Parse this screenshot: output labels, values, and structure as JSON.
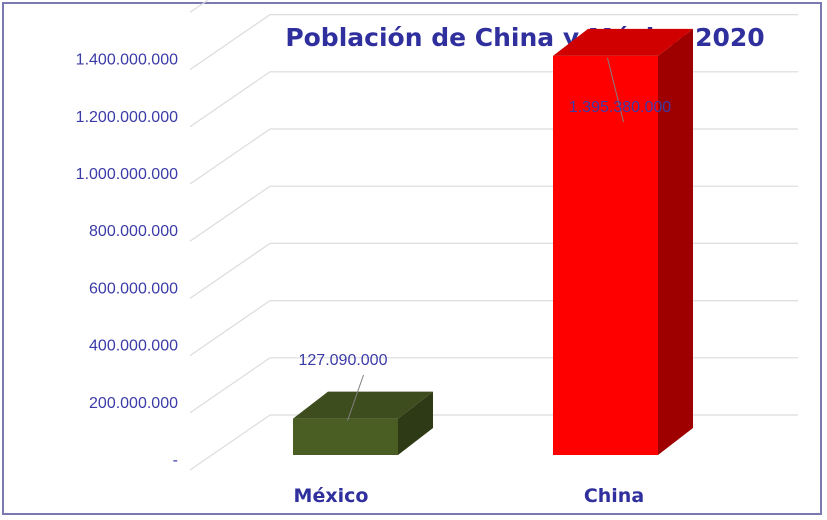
{
  "chart_data": {
    "type": "bar",
    "title": "Población de China y México 2020",
    "categories": [
      "México",
      "China"
    ],
    "values": [
      127090000,
      1395380000
    ],
    "data_labels": [
      "127.090.000",
      "1.395.380.000"
    ],
    "colors": [
      "#4a5e23",
      "#ff0000"
    ],
    "yticks": [
      0,
      200000000,
      400000000,
      600000000,
      800000000,
      1000000000,
      1200000000,
      1400000000
    ],
    "ytick_labels": [
      "-",
      "200.000.000",
      "400.000.000",
      "600.000.000",
      "800.000.000",
      "1.000.000.000",
      "1.200.000.000",
      "1.400.000.000"
    ],
    "ylim": [
      0,
      1600000000
    ],
    "grid": true,
    "style": "3d-column"
  }
}
